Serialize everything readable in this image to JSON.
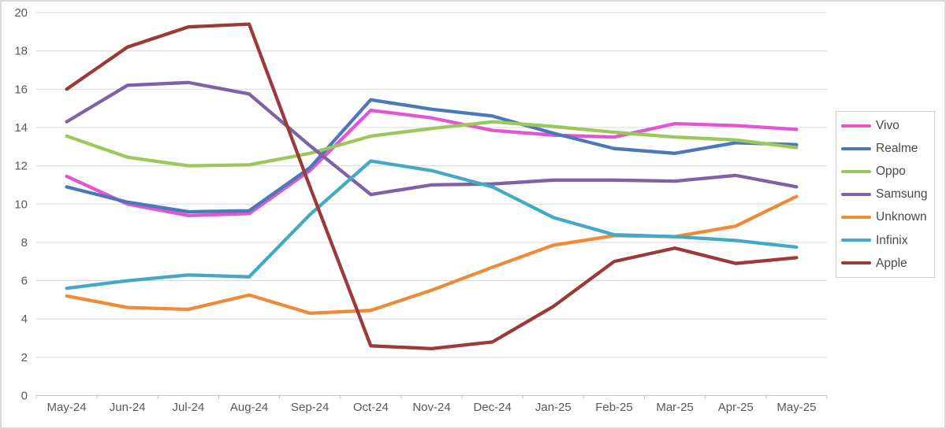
{
  "window": {
    "background": "#ffffff",
    "border_color": "#d9d9d9"
  },
  "chart_data": {
    "type": "line",
    "title": "",
    "xlabel": "",
    "ylabel": "",
    "categories": [
      "May-24",
      "Jun-24",
      "Jul-24",
      "Aug-24",
      "Sep-24",
      "Oct-24",
      "Nov-24",
      "Dec-24",
      "Jan-25",
      "Feb-25",
      "Mar-25",
      "Apr-25",
      "May-25"
    ],
    "series": [
      {
        "name": "Vivo",
        "color": "#e156d3",
        "values": [
          11.45,
          10.0,
          9.4,
          9.5,
          11.75,
          14.9,
          14.5,
          13.85,
          13.6,
          13.5,
          14.2,
          14.1,
          13.9
        ]
      },
      {
        "name": "Realme",
        "color": "#4a78b8",
        "values": [
          10.9,
          10.1,
          9.6,
          9.65,
          11.9,
          15.45,
          14.95,
          14.6,
          13.7,
          12.9,
          12.65,
          13.2,
          13.1
        ]
      },
      {
        "name": "Oppo",
        "color": "#9cc75b",
        "values": [
          13.55,
          12.45,
          12.0,
          12.05,
          12.65,
          13.55,
          13.95,
          14.3,
          14.05,
          13.75,
          13.5,
          13.35,
          12.95
        ]
      },
      {
        "name": "Samsung",
        "color": "#7d62a5",
        "values": [
          14.3,
          16.2,
          16.35,
          15.75,
          13.05,
          10.5,
          11.0,
          11.05,
          11.25,
          11.25,
          11.2,
          11.5,
          10.9
        ]
      },
      {
        "name": "Unknown",
        "color": "#ee8b38",
        "values": [
          5.2,
          4.6,
          4.5,
          5.25,
          4.3,
          4.45,
          5.5,
          6.7,
          7.85,
          8.35,
          8.3,
          8.85,
          10.4
        ]
      },
      {
        "name": "Infinix",
        "color": "#45a9c6",
        "values": [
          5.6,
          6.0,
          6.3,
          6.2,
          9.45,
          12.25,
          11.75,
          10.9,
          9.3,
          8.4,
          8.3,
          8.1,
          7.75
        ]
      },
      {
        "name": "Apple",
        "color": "#9b3a38",
        "values": [
          16.0,
          18.2,
          19.25,
          19.4,
          10.9,
          2.6,
          2.45,
          2.8,
          4.65,
          7.0,
          7.7,
          6.9,
          7.2
        ]
      }
    ],
    "ylim": [
      0,
      20
    ],
    "ytick_step": 2,
    "grid": "horizontal",
    "legend_position": "right",
    "style": {
      "gridline_color": "#d9d9d9",
      "axis_line_color": "#c6c6c6",
      "axis_text_color": "#595959",
      "line_width": 4.3
    }
  }
}
